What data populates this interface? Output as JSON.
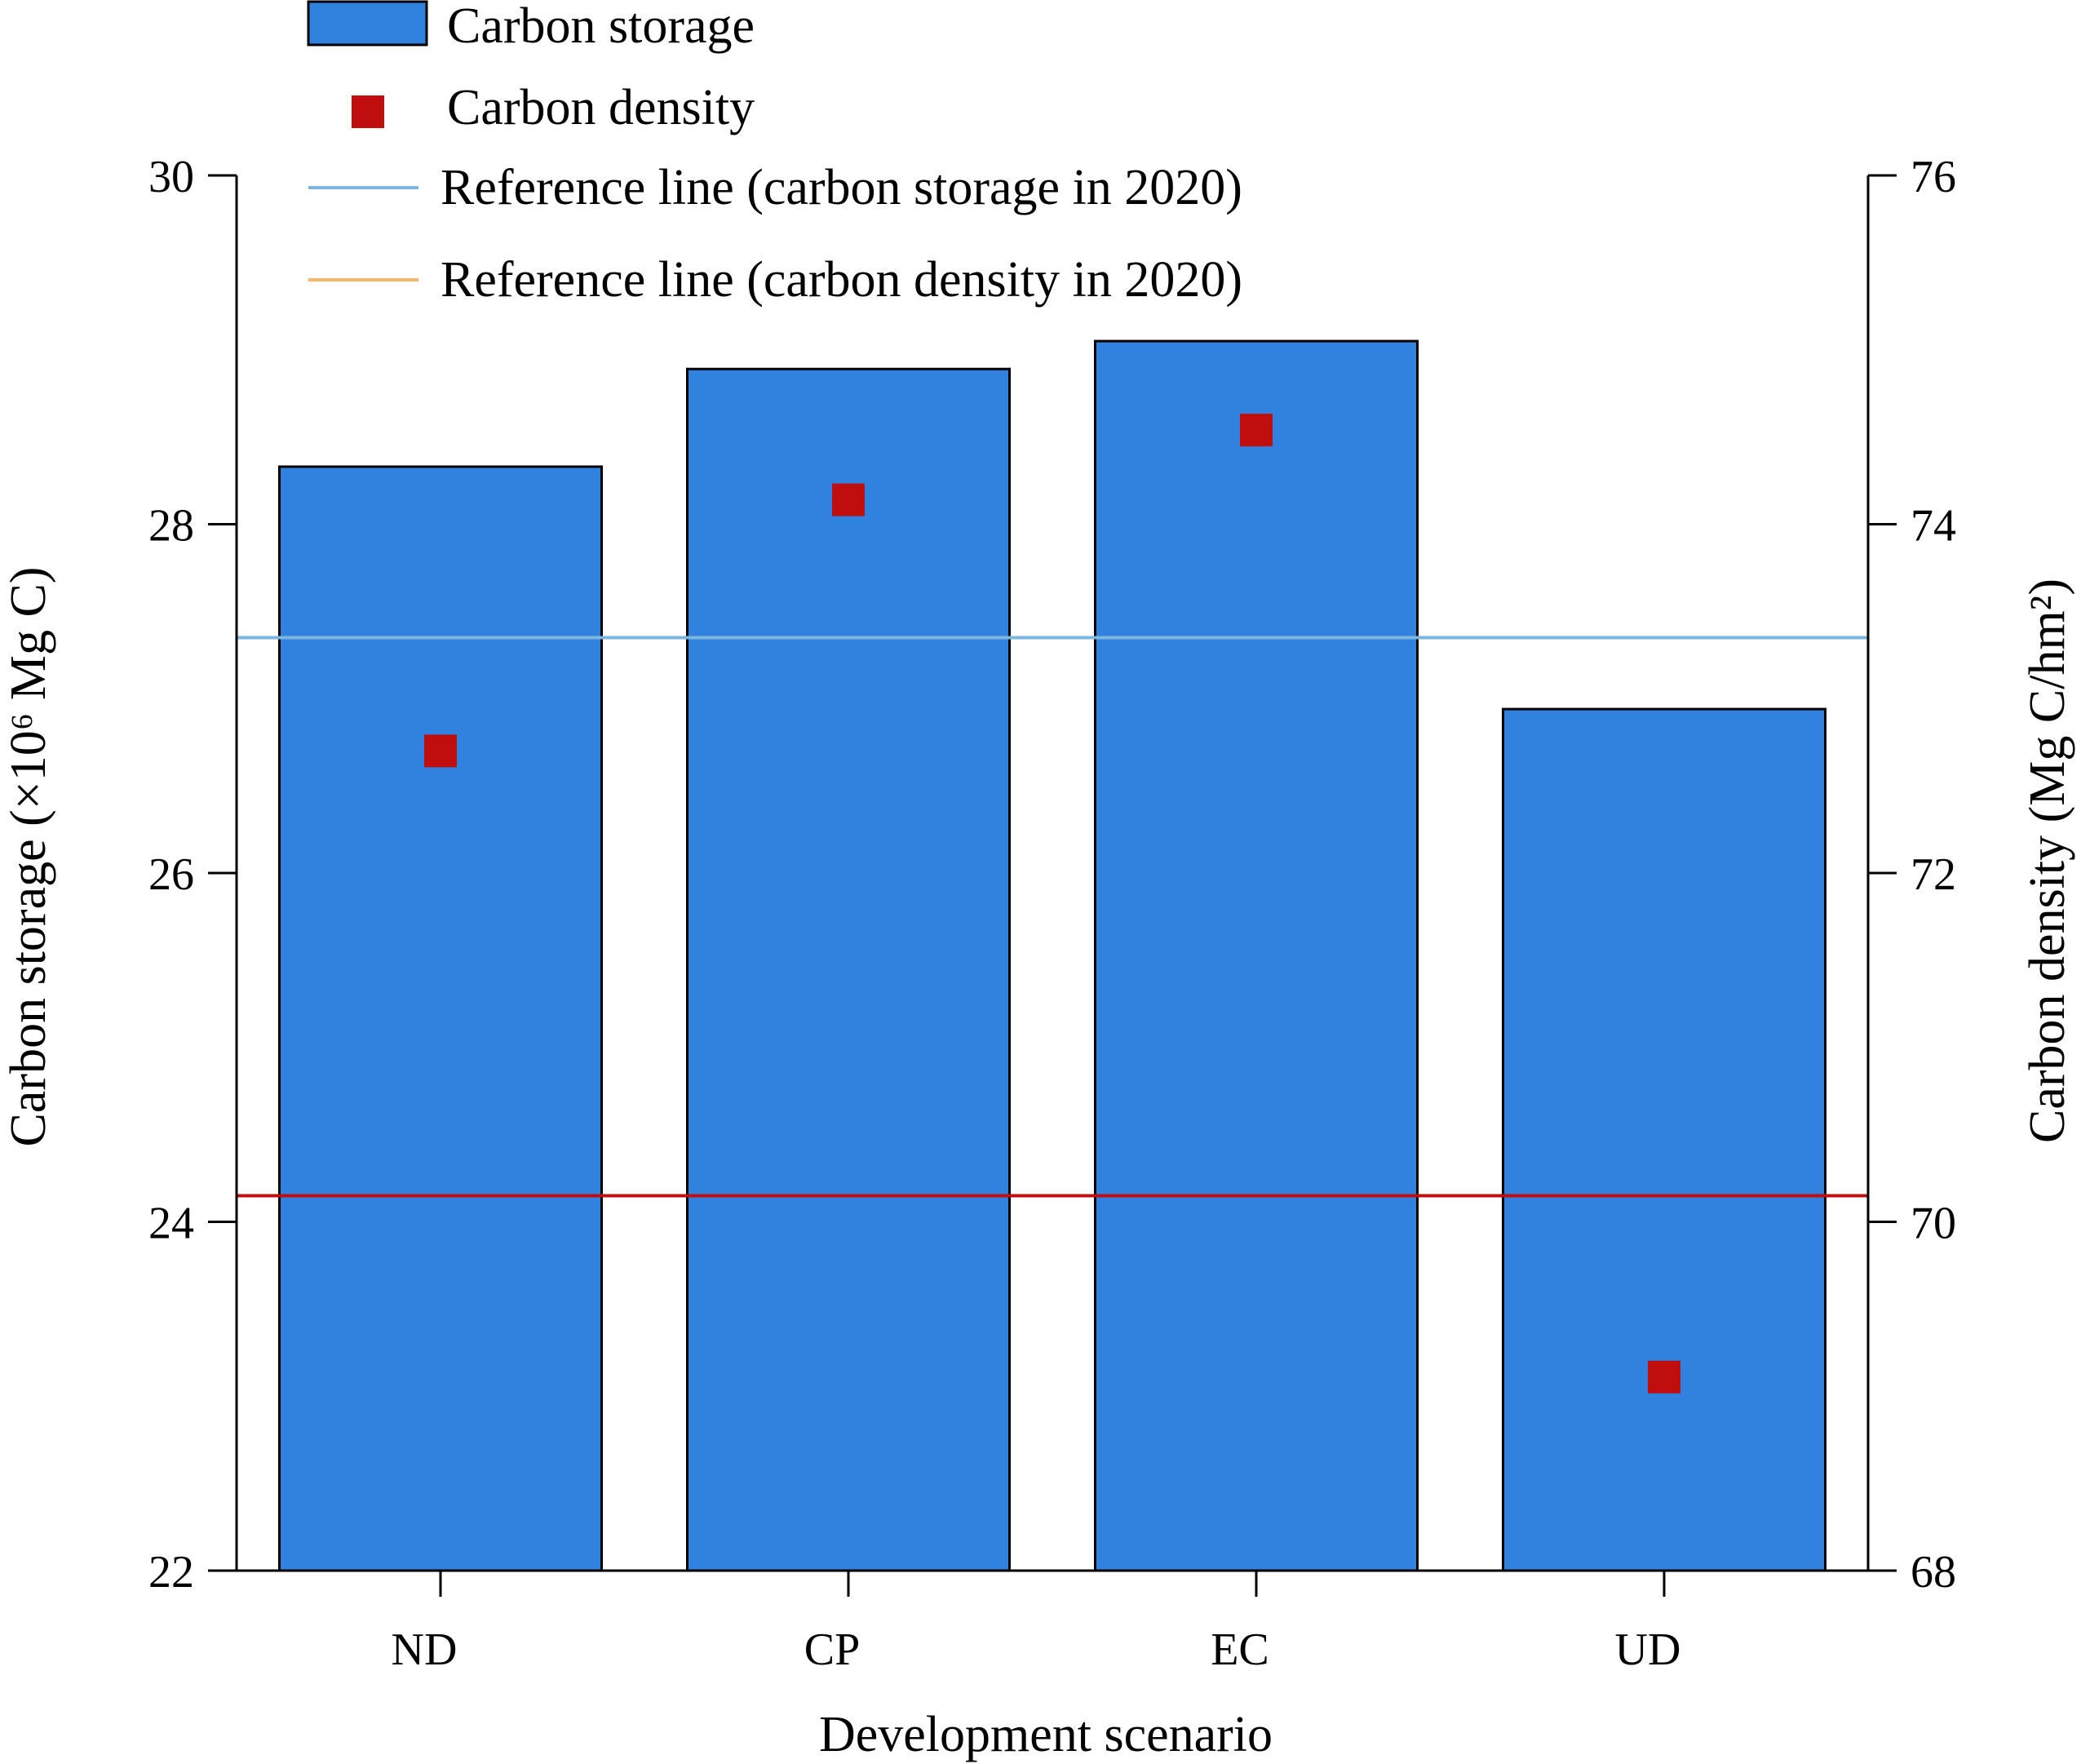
{
  "chart_data": {
    "type": "bar",
    "categories": [
      "ND",
      "CP",
      "EC",
      "UD"
    ],
    "series": [
      {
        "name": "Carbon storage",
        "type": "bar",
        "axis": "left",
        "values": [
          28.33,
          28.89,
          29.05,
          26.94
        ],
        "color": "#3181de"
      },
      {
        "name": "Carbon density",
        "type": "scatter",
        "axis": "right",
        "values": [
          72.7,
          74.14,
          74.54,
          69.11
        ],
        "color": "#c00d0d"
      }
    ],
    "reference_lines": [
      {
        "name": "Reference line (carbon storage in 2020)",
        "axis": "left",
        "value": 27.35,
        "color": "#7ab6de"
      },
      {
        "name": "Reference line (carbon density in 2020)",
        "axis": "right",
        "value": 70.15,
        "color": "#c00d0d",
        "legend_color": "#f5b866"
      }
    ],
    "xlabel": "Development scenario",
    "ylabel_left": "Carbon storage (×10⁶ Mg C)",
    "ylabel_right": "Carbon density (Mg C/hm²)",
    "ylim_left": [
      22,
      30
    ],
    "yticks_left": [
      "22",
      "24",
      "26",
      "28",
      "30"
    ],
    "ylim_right": [
      68,
      76
    ],
    "yticks_right": [
      "68",
      "70",
      "72",
      "74",
      "76"
    ],
    "legend_position": "top",
    "grid": false
  }
}
